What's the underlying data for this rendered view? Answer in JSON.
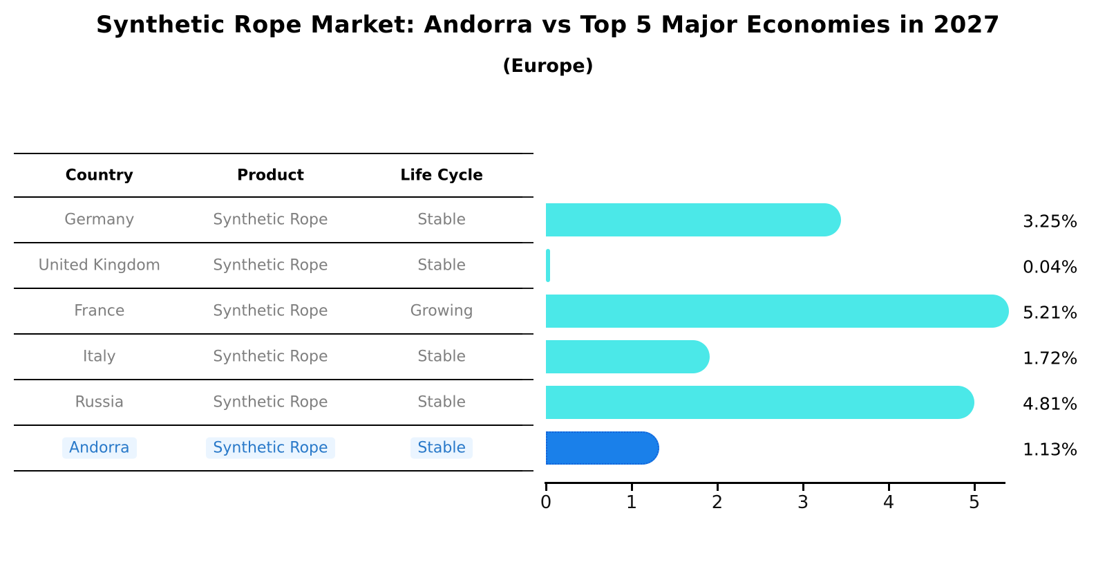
{
  "title": "Synthetic Rope Market: Andorra vs Top 5 Major Economies in 2027",
  "subtitle": "(Europe)",
  "table": {
    "columns": [
      "Country",
      "Product",
      "Life Cycle"
    ],
    "rows": [
      {
        "country": "Germany",
        "product": "Synthetic Rope",
        "life_cycle": "Stable",
        "highlighted": false
      },
      {
        "country": "United Kingdom",
        "product": "Synthetic Rope",
        "life_cycle": "Stable",
        "highlighted": false
      },
      {
        "country": "France",
        "product": "Synthetic Rope",
        "life_cycle": "Growing",
        "highlighted": false
      },
      {
        "country": "Italy",
        "product": "Synthetic Rope",
        "life_cycle": "Stable",
        "highlighted": false
      },
      {
        "country": "Russia",
        "product": "Synthetic Rope",
        "life_cycle": "Stable",
        "highlighted": false
      },
      {
        "country": "Andorra",
        "product": "Synthetic Rope",
        "life_cycle": "Stable",
        "highlighted": true
      }
    ]
  },
  "chart_data": {
    "type": "bar",
    "orientation": "horizontal",
    "title": "Synthetic Rope Market: Andorra vs Top 5 Major Economies in 2027 (Europe)",
    "categories": [
      "Germany",
      "United Kingdom",
      "France",
      "Italy",
      "Russia",
      "Andorra"
    ],
    "values": [
      3.25,
      0.04,
      5.21,
      1.72,
      4.81,
      1.13
    ],
    "value_labels": [
      "3.25%",
      "0.04%",
      "5.21%",
      "1.72%",
      "4.81%",
      "1.13%"
    ],
    "x_ticks": [
      "0",
      "1",
      "2",
      "3",
      "4",
      "5"
    ],
    "xlim": [
      0,
      5.4
    ],
    "grid": false,
    "legend": false,
    "highlight_index": 5,
    "colors": {
      "bar": "#4BE8E8",
      "highlight_bar": "#1A80EA",
      "highlight_border": "#1463D8",
      "row_text": "#7f7f7f",
      "highlight_text": "#2979C9",
      "highlight_text_bg": "#EBF5FF",
      "axis": "#000000"
    }
  }
}
